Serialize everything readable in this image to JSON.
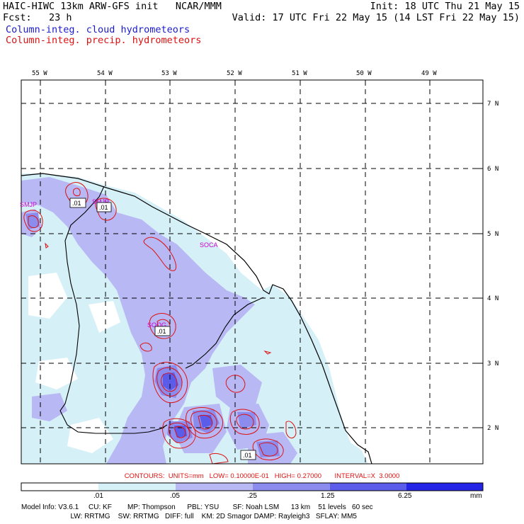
{
  "header": {
    "line1_left": "HAIC-HIWC 13km ARW-GFS init   NCAR/MMM",
    "line1_right": "Init: 18 UTC Thu 21 May 15",
    "line2_left": "Fcst:   23 h",
    "line2_right": "Valid: 17 UTC Fri 22 May 15 (14 LST Fri 22 May 15)",
    "line3": "Column-integ. cloud hydrometeors",
    "line4": "Column-integ. precip. hydrometeors"
  },
  "map": {
    "lon_labels": [
      "55 W",
      "54 W",
      "53 W",
      "52 W",
      "51 W",
      "50 W",
      "49 W"
    ],
    "lat_labels": [
      "7 N",
      "6 N",
      "5 N",
      "4 N",
      "3 N",
      "2 N"
    ],
    "stations": [
      "SMJP",
      "SMJP",
      "SOCA",
      "SOOG"
    ],
    "contour_labels": [
      ".01",
      ".01",
      ".01",
      ".01"
    ]
  },
  "contour_info": "CONTOURS:  UNITS=mm   LOW= 0.10000E-01   HIGH= 0.27000       INTERVAL=X  3.0000",
  "legend": {
    "ticks": [
      ".01",
      ".05",
      ".25",
      "1.25",
      "6.25"
    ],
    "unit": "mm",
    "colors": [
      "#ffffff",
      "#d6f0f8",
      "#b8b8f4",
      "#8c8cef",
      "#5c5cea",
      "#2424e6"
    ]
  },
  "footer": {
    "line1": "Model Info: V3.6.1     CU: KF        MP: Thompson      PBL: YSU       SF: Noah LSM      13 km    51 levels   60 sec",
    "line2": "                         LW: RRTMG    SW: RRTMG   DIFF: full    KM: 2D Smagor DAMP: Rayleigh3   SFLAY: MM5"
  }
}
